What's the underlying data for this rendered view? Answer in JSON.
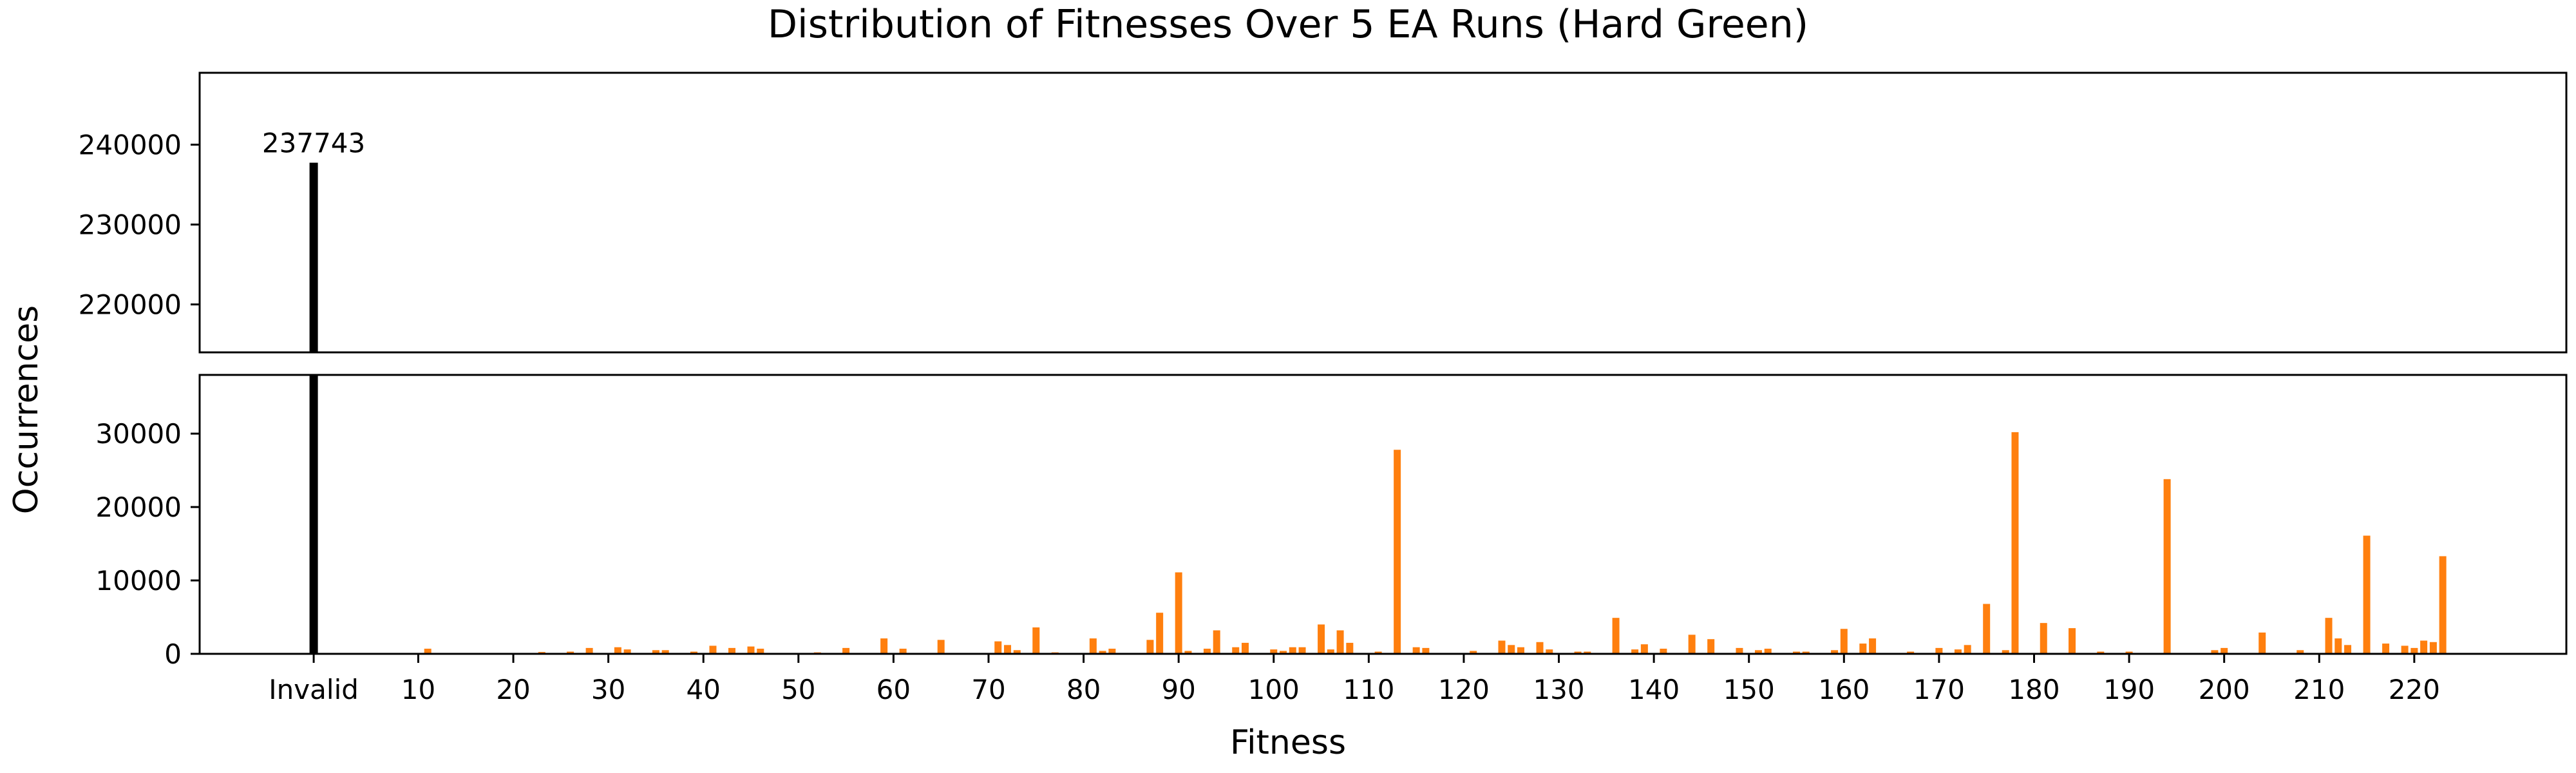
{
  "chart_data": {
    "type": "bar",
    "title": "Distribution of Fitnesses Over 5 EA Runs (Hard Green)",
    "xlabel": "Fitness",
    "ylabel": "Occurrences",
    "x_tick_labels": [
      "Invalid",
      "10",
      "20",
      "30",
      "40",
      "50",
      "60",
      "70",
      "80",
      "90",
      "100",
      "110",
      "120",
      "130",
      "140",
      "150",
      "160",
      "170",
      "180",
      "190",
      "200",
      "210",
      "220"
    ],
    "x_tick_values": [
      -1,
      10,
      20,
      30,
      40,
      50,
      60,
      70,
      80,
      90,
      100,
      110,
      120,
      130,
      140,
      150,
      160,
      170,
      180,
      190,
      200,
      210,
      220
    ],
    "xlim": [
      -13,
      236
    ],
    "broken_y_axis": true,
    "panels": [
      {
        "name": "top",
        "ylim": [
          214000,
          249000
        ],
        "yticks": [
          220000,
          230000,
          240000
        ]
      },
      {
        "name": "bottom",
        "ylim": [
          0,
          38000
        ],
        "yticks": [
          0,
          10000,
          20000,
          30000
        ]
      }
    ],
    "colors": {
      "invalid": "#000000",
      "valid": "#ff7f0e"
    },
    "invalid": {
      "label": "Invalid",
      "value": 237743,
      "value_label": "237743"
    },
    "series": [
      {
        "color": "#ff7f0e",
        "points": [
          [
            11,
            700
          ],
          [
            23,
            250
          ],
          [
            26,
            300
          ],
          [
            28,
            800
          ],
          [
            31,
            900
          ],
          [
            32,
            600
          ],
          [
            35,
            500
          ],
          [
            36,
            500
          ],
          [
            39,
            300
          ],
          [
            41,
            1100
          ],
          [
            43,
            800
          ],
          [
            45,
            1000
          ],
          [
            46,
            700
          ],
          [
            52,
            200
          ],
          [
            55,
            800
          ],
          [
            59,
            2100
          ],
          [
            61,
            700
          ],
          [
            65,
            1900
          ],
          [
            71,
            1700
          ],
          [
            72,
            1200
          ],
          [
            73,
            500
          ],
          [
            75,
            3600
          ],
          [
            77,
            200
          ],
          [
            81,
            2100
          ],
          [
            82,
            400
          ],
          [
            83,
            700
          ],
          [
            87,
            1900
          ],
          [
            88,
            5600
          ],
          [
            90,
            11100
          ],
          [
            91,
            400
          ],
          [
            93,
            700
          ],
          [
            94,
            3200
          ],
          [
            96,
            900
          ],
          [
            97,
            1500
          ],
          [
            100,
            600
          ],
          [
            101,
            400
          ],
          [
            102,
            900
          ],
          [
            103,
            900
          ],
          [
            105,
            4000
          ],
          [
            106,
            600
          ],
          [
            107,
            3200
          ],
          [
            108,
            1500
          ],
          [
            111,
            300
          ],
          [
            113,
            27800
          ],
          [
            115,
            900
          ],
          [
            116,
            800
          ],
          [
            121,
            400
          ],
          [
            124,
            1800
          ],
          [
            125,
            1200
          ],
          [
            126,
            900
          ],
          [
            128,
            1600
          ],
          [
            129,
            600
          ],
          [
            132,
            300
          ],
          [
            133,
            300
          ],
          [
            136,
            4900
          ],
          [
            138,
            600
          ],
          [
            139,
            1300
          ],
          [
            141,
            700
          ],
          [
            144,
            2600
          ],
          [
            146,
            2000
          ],
          [
            149,
            800
          ],
          [
            151,
            500
          ],
          [
            152,
            700
          ],
          [
            155,
            300
          ],
          [
            156,
            300
          ],
          [
            159,
            500
          ],
          [
            160,
            3400
          ],
          [
            162,
            1400
          ],
          [
            163,
            2100
          ],
          [
            167,
            300
          ],
          [
            170,
            800
          ],
          [
            172,
            600
          ],
          [
            173,
            1200
          ],
          [
            175,
            6800
          ],
          [
            177,
            500
          ],
          [
            178,
            30200
          ],
          [
            181,
            4200
          ],
          [
            184,
            3500
          ],
          [
            187,
            300
          ],
          [
            190,
            300
          ],
          [
            194,
            23800
          ],
          [
            199,
            500
          ],
          [
            200,
            800
          ],
          [
            204,
            2900
          ],
          [
            208,
            500
          ],
          [
            211,
            4900
          ],
          [
            212,
            2100
          ],
          [
            213,
            1200
          ],
          [
            215,
            16100
          ],
          [
            217,
            1400
          ],
          [
            219,
            1100
          ],
          [
            220,
            800
          ],
          [
            221,
            1800
          ],
          [
            222,
            1600
          ],
          [
            223,
            13300
          ]
        ]
      }
    ]
  }
}
